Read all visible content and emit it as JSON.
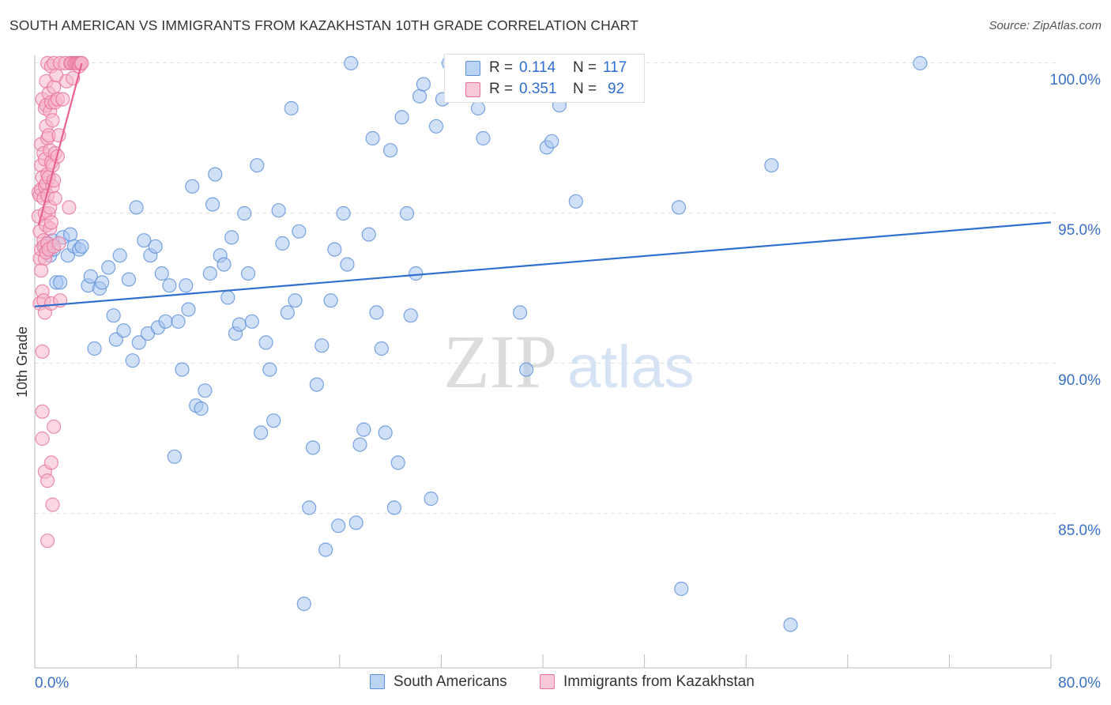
{
  "header": {
    "title": "SOUTH AMERICAN VS IMMIGRANTS FROM KAZAKHSTAN 10TH GRADE CORRELATION CHART",
    "source": "Source: ZipAtlas.com"
  },
  "watermark": {
    "zip": "ZIP",
    "atlas": "atlas"
  },
  "legend_top": {
    "rows": [
      {
        "r_label": "R =",
        "r_value": "0.114",
        "n_label": "N =",
        "n_value": "117"
      },
      {
        "r_label": "R =",
        "r_value": "0.351",
        "n_label": "N =",
        "n_value": "92"
      }
    ]
  },
  "colors": {
    "blue_fill": "#a9c6ef",
    "blue_stroke": "#5b8fdb",
    "blue_line": "#2f6fd0",
    "pink_fill": "#f5b6ca",
    "pink_stroke": "#e8729b",
    "pink_line": "#e8608e",
    "axis_text_blue": "#3a70c8",
    "grid": "#e2e2e2"
  },
  "chart_data": {
    "type": "scatter",
    "title": "SOUTH AMERICAN VS IMMIGRANTS FROM KAZAKHSTAN 10TH GRADE CORRELATION CHART",
    "xlabel": "",
    "ylabel": "10th Grade",
    "xlim": [
      0,
      80
    ],
    "ylim": [
      80.0,
      101.0
    ],
    "x_tick_labels": [
      "0.0%",
      "80.0%"
    ],
    "y_ticks": [
      85.0,
      90.0,
      95.0,
      100.0
    ],
    "y_tick_labels": [
      "85.0%",
      "90.0%",
      "95.0%",
      "100.0%"
    ],
    "grid": true,
    "legend_position": "bottom-center",
    "series": [
      {
        "name": "South Americans",
        "color": "#a9c6ef",
        "regression": {
          "x": [
            0,
            80
          ],
          "y": [
            91.9,
            94.7
          ]
        },
        "points": [
          [
            0.8,
            93.9
          ],
          [
            1.0,
            94.0
          ],
          [
            1.1,
            93.8
          ],
          [
            1.2,
            93.6
          ],
          [
            1.4,
            94.1
          ],
          [
            1.5,
            93.8
          ],
          [
            1.7,
            92.7
          ],
          [
            2.0,
            92.7
          ],
          [
            2.2,
            94.2
          ],
          [
            2.6,
            93.6
          ],
          [
            2.8,
            94.3
          ],
          [
            3.1,
            93.9
          ],
          [
            3.5,
            93.8
          ],
          [
            3.7,
            93.9
          ],
          [
            4.2,
            92.6
          ],
          [
            4.4,
            92.9
          ],
          [
            4.7,
            90.5
          ],
          [
            5.1,
            92.5
          ],
          [
            5.3,
            92.7
          ],
          [
            5.8,
            93.2
          ],
          [
            6.2,
            91.6
          ],
          [
            6.4,
            90.8
          ],
          [
            6.7,
            93.6
          ],
          [
            7.0,
            91.1
          ],
          [
            7.4,
            92.8
          ],
          [
            7.7,
            90.1
          ],
          [
            8.0,
            95.2
          ],
          [
            8.2,
            90.7
          ],
          [
            8.6,
            94.1
          ],
          [
            8.9,
            91.0
          ],
          [
            9.1,
            93.6
          ],
          [
            9.5,
            93.9
          ],
          [
            9.7,
            91.2
          ],
          [
            10.0,
            93.0
          ],
          [
            10.3,
            91.4
          ],
          [
            10.6,
            92.6
          ],
          [
            11.0,
            86.9
          ],
          [
            11.3,
            91.4
          ],
          [
            11.6,
            89.8
          ],
          [
            11.9,
            92.6
          ],
          [
            12.1,
            91.8
          ],
          [
            12.4,
            95.9
          ],
          [
            12.7,
            88.6
          ],
          [
            13.1,
            88.5
          ],
          [
            13.4,
            89.1
          ],
          [
            13.8,
            93.0
          ],
          [
            14.0,
            95.3
          ],
          [
            14.2,
            96.3
          ],
          [
            14.6,
            93.6
          ],
          [
            14.9,
            93.3
          ],
          [
            15.2,
            92.2
          ],
          [
            15.5,
            94.2
          ],
          [
            15.8,
            91.0
          ],
          [
            16.1,
            91.3
          ],
          [
            16.5,
            95.0
          ],
          [
            16.8,
            93.0
          ],
          [
            17.1,
            91.4
          ],
          [
            17.5,
            96.6
          ],
          [
            17.8,
            87.7
          ],
          [
            18.2,
            90.7
          ],
          [
            18.5,
            89.8
          ],
          [
            18.8,
            88.1
          ],
          [
            19.2,
            95.1
          ],
          [
            19.5,
            94.0
          ],
          [
            19.9,
            91.7
          ],
          [
            20.2,
            98.5
          ],
          [
            20.5,
            92.1
          ],
          [
            20.8,
            94.4
          ],
          [
            21.2,
            82.0
          ],
          [
            21.6,
            85.2
          ],
          [
            21.9,
            87.2
          ],
          [
            22.2,
            89.3
          ],
          [
            22.6,
            90.6
          ],
          [
            22.9,
            83.8
          ],
          [
            23.3,
            92.1
          ],
          [
            23.6,
            93.8
          ],
          [
            23.9,
            84.6
          ],
          [
            24.3,
            95.0
          ],
          [
            24.6,
            93.3
          ],
          [
            24.9,
            100.0
          ],
          [
            25.3,
            84.7
          ],
          [
            25.6,
            87.3
          ],
          [
            25.9,
            87.8
          ],
          [
            26.3,
            94.3
          ],
          [
            26.6,
            97.5
          ],
          [
            26.9,
            91.7
          ],
          [
            27.3,
            90.5
          ],
          [
            27.6,
            87.7
          ],
          [
            28.0,
            97.1
          ],
          [
            28.3,
            85.2
          ],
          [
            28.6,
            86.7
          ],
          [
            28.9,
            98.2
          ],
          [
            29.3,
            95.0
          ],
          [
            29.6,
            91.6
          ],
          [
            30.0,
            93.0
          ],
          [
            30.3,
            98.9
          ],
          [
            30.6,
            99.3
          ],
          [
            31.2,
            85.5
          ],
          [
            31.6,
            97.9
          ],
          [
            32.1,
            98.8
          ],
          [
            32.6,
            100.0
          ],
          [
            34.9,
            98.5
          ],
          [
            35.3,
            97.5
          ],
          [
            37.2,
            99.7
          ],
          [
            38.2,
            91.7
          ],
          [
            38.7,
            89.8
          ],
          [
            39.0,
            100.0
          ],
          [
            40.3,
            97.2
          ],
          [
            40.7,
            97.4
          ],
          [
            41.3,
            98.6
          ],
          [
            42.6,
            95.4
          ],
          [
            50.7,
            95.2
          ],
          [
            50.9,
            82.5
          ],
          [
            58.0,
            96.6
          ],
          [
            59.5,
            81.3
          ],
          [
            69.7,
            100.0
          ]
        ]
      },
      {
        "name": "Immigrants from Kazakhstan",
        "color": "#f5b6ca",
        "regression": {
          "x": [
            0.3,
            3.7
          ],
          "y": [
            94.6,
            100.0
          ]
        },
        "points": [
          [
            0.3,
            95.7
          ],
          [
            0.3,
            94.9
          ],
          [
            0.4,
            93.5
          ],
          [
            0.4,
            92.0
          ],
          [
            0.4,
            94.4
          ],
          [
            0.4,
            95.6
          ],
          [
            0.5,
            97.3
          ],
          [
            0.5,
            96.6
          ],
          [
            0.5,
            95.8
          ],
          [
            0.5,
            93.8
          ],
          [
            0.5,
            93.1
          ],
          [
            0.6,
            98.8
          ],
          [
            0.6,
            96.2
          ],
          [
            0.6,
            92.4
          ],
          [
            0.6,
            90.4
          ],
          [
            0.6,
            88.4
          ],
          [
            0.6,
            87.5
          ],
          [
            0.7,
            97.0
          ],
          [
            0.7,
            95.5
          ],
          [
            0.7,
            94.1
          ],
          [
            0.7,
            93.9
          ],
          [
            0.7,
            92.1
          ],
          [
            0.8,
            98.5
          ],
          [
            0.8,
            96.8
          ],
          [
            0.8,
            95.9
          ],
          [
            0.8,
            95.0
          ],
          [
            0.8,
            93.5
          ],
          [
            0.8,
            91.7
          ],
          [
            0.8,
            86.4
          ],
          [
            0.9,
            99.4
          ],
          [
            0.9,
            98.6
          ],
          [
            0.9,
            97.9
          ],
          [
            0.9,
            96.0
          ],
          [
            0.9,
            94.6
          ],
          [
            0.9,
            93.7
          ],
          [
            1.0,
            100.0
          ],
          [
            1.0,
            97.5
          ],
          [
            1.0,
            96.3
          ],
          [
            1.0,
            95.6
          ],
          [
            1.0,
            94.0
          ],
          [
            1.0,
            86.1
          ],
          [
            1.0,
            84.1
          ],
          [
            1.1,
            99.0
          ],
          [
            1.1,
            97.6
          ],
          [
            1.1,
            96.2
          ],
          [
            1.1,
            95.0
          ],
          [
            1.1,
            93.8
          ],
          [
            1.2,
            98.4
          ],
          [
            1.2,
            97.1
          ],
          [
            1.2,
            95.2
          ],
          [
            1.2,
            94.5
          ],
          [
            1.3,
            99.9
          ],
          [
            1.3,
            98.7
          ],
          [
            1.3,
            96.7
          ],
          [
            1.3,
            94.7
          ],
          [
            1.3,
            92.0
          ],
          [
            1.3,
            86.7
          ],
          [
            1.4,
            98.1
          ],
          [
            1.4,
            96.6
          ],
          [
            1.4,
            95.9
          ],
          [
            1.4,
            85.3
          ],
          [
            1.5,
            100.0
          ],
          [
            1.5,
            99.2
          ],
          [
            1.5,
            96.1
          ],
          [
            1.5,
            93.9
          ],
          [
            1.5,
            87.9
          ],
          [
            1.6,
            98.7
          ],
          [
            1.6,
            97.0
          ],
          [
            1.6,
            95.5
          ],
          [
            1.7,
            99.6
          ],
          [
            1.8,
            98.8
          ],
          [
            1.8,
            96.9
          ],
          [
            1.9,
            97.6
          ],
          [
            1.9,
            94.0
          ],
          [
            2.0,
            100.0
          ],
          [
            2.0,
            92.1
          ],
          [
            2.2,
            98.8
          ],
          [
            2.4,
            100.0
          ],
          [
            2.5,
            99.4
          ],
          [
            2.7,
            95.2
          ],
          [
            2.8,
            100.0
          ],
          [
            2.9,
            100.0
          ],
          [
            3.0,
            99.5
          ],
          [
            3.1,
            100.0
          ],
          [
            3.2,
            100.0
          ],
          [
            3.3,
            100.0
          ],
          [
            3.4,
            100.0
          ],
          [
            3.5,
            100.0
          ],
          [
            3.5,
            99.9
          ],
          [
            3.6,
            100.0
          ],
          [
            3.6,
            100.0
          ],
          [
            3.7,
            100.0
          ]
        ]
      }
    ]
  }
}
